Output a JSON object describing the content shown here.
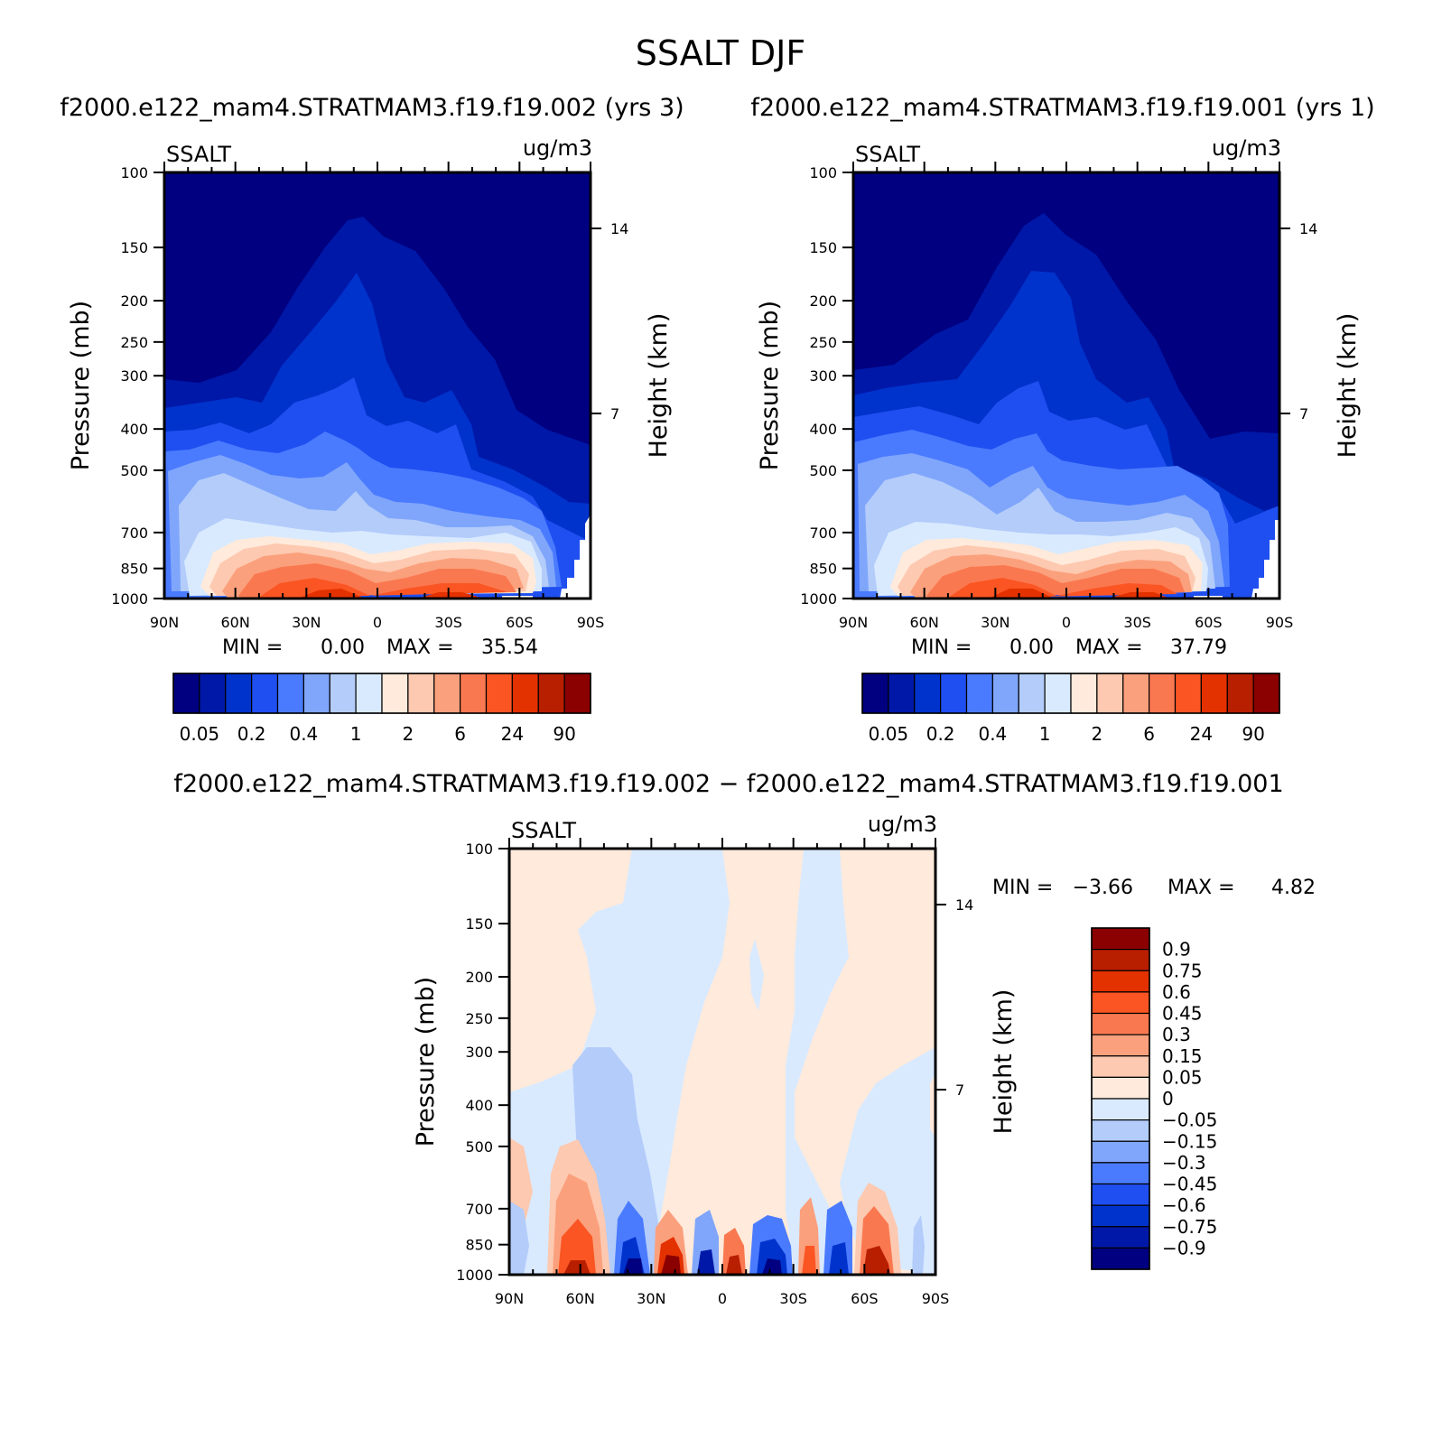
{
  "figure": {
    "title": "SSALT DJF",
    "left_title": "f2000.e122_mam4.STRATMAM3.f19.f19.002 (yrs 3)",
    "right_title": "f2000.e122_mam4.STRATMAM3.f19.f19.001 (yrs 1)",
    "diff_title": "f2000.e122_mam4.STRATMAM3.f19.f19.002 − f2000.e122_mam4.STRATMAM3.f19.f19.001"
  },
  "chart_data": [
    {
      "id": "panel-left",
      "type": "heatmap",
      "variable": "SSALT",
      "units": "ug/m3",
      "ylabel": "Pressure (mb)",
      "y2label": "Height (km)",
      "x_ticks": [
        "90N",
        "60N",
        "30N",
        "0",
        "30S",
        "60S",
        "90S"
      ],
      "y_ticks": [
        100,
        150,
        200,
        250,
        300,
        400,
        500,
        700,
        850,
        1000
      ],
      "y2_ticks": [
        14,
        7
      ],
      "ylim": [
        1000,
        100
      ],
      "min_label": "MIN =",
      "min_value": "0.00",
      "max_label": "MAX =",
      "max_value": "35.54",
      "contour_levels": [
        0.05,
        0.1,
        0.2,
        0.3,
        0.4,
        0.5,
        1,
        1.5,
        2,
        4,
        6,
        12,
        24,
        48,
        90
      ],
      "colorbar_labels": [
        "0.05",
        "0.2",
        "0.4",
        "1",
        "2",
        "6",
        "24",
        "90"
      ],
      "colors": [
        "#000080",
        "#0018a8",
        "#0033cc",
        "#1f4ff0",
        "#4a7bff",
        "#80a6fb",
        "#b3ccfa",
        "#d9eaff",
        "#ffeadb",
        "#fdc9b0",
        "#fba07c",
        "#fa7850",
        "#fa5523",
        "#e33100",
        "#b81e00",
        "#8b0000"
      ]
    },
    {
      "id": "panel-right",
      "type": "heatmap",
      "variable": "SSALT",
      "units": "ug/m3",
      "ylabel": "Pressure (mb)",
      "y2label": "Height (km)",
      "x_ticks": [
        "90N",
        "60N",
        "30N",
        "0",
        "30S",
        "60S",
        "90S"
      ],
      "y_ticks": [
        100,
        150,
        200,
        250,
        300,
        400,
        500,
        700,
        850,
        1000
      ],
      "y2_ticks": [
        14,
        7
      ],
      "ylim": [
        1000,
        100
      ],
      "min_label": "MIN =",
      "min_value": "0.00",
      "max_label": "MAX =",
      "max_value": "37.79",
      "contour_levels": [
        0.05,
        0.1,
        0.2,
        0.3,
        0.4,
        0.5,
        1,
        1.5,
        2,
        4,
        6,
        12,
        24,
        48,
        90
      ],
      "colorbar_labels": [
        "0.05",
        "0.2",
        "0.4",
        "1",
        "2",
        "6",
        "24",
        "90"
      ],
      "colors": [
        "#000080",
        "#0018a8",
        "#0033cc",
        "#1f4ff0",
        "#4a7bff",
        "#80a6fb",
        "#b3ccfa",
        "#d9eaff",
        "#ffeadb",
        "#fdc9b0",
        "#fba07c",
        "#fa7850",
        "#fa5523",
        "#e33100",
        "#b81e00",
        "#8b0000"
      ]
    },
    {
      "id": "panel-diff",
      "type": "heatmap",
      "variable": "SSALT",
      "units": "ug/m3",
      "ylabel": "Pressure (mb)",
      "y2label": "Height (km)",
      "x_ticks": [
        "90N",
        "60N",
        "30N",
        "0",
        "30S",
        "60S",
        "90S"
      ],
      "y_ticks": [
        100,
        150,
        200,
        250,
        300,
        400,
        500,
        700,
        850,
        1000
      ],
      "y2_ticks": [
        14,
        7
      ],
      "ylim": [
        1000,
        100
      ],
      "min_label": "MIN =",
      "min_value": "−3.66",
      "max_label": "MAX =",
      "max_value": "4.82",
      "colorbar_labels": [
        "0.9",
        "0.75",
        "0.6",
        "0.45",
        "0.3",
        "0.15",
        "0.05",
        "0",
        "−0.05",
        "−0.15",
        "−0.3",
        "−0.45",
        "−0.6",
        "−0.75",
        "−0.9"
      ],
      "colors": [
        "#8b0000",
        "#b81e00",
        "#e33100",
        "#fa5523",
        "#fa7850",
        "#fba07c",
        "#fdc9b0",
        "#ffeadb",
        "#d9eaff",
        "#b3ccfa",
        "#80a6fb",
        "#4a7bff",
        "#1f4ff0",
        "#0033cc",
        "#0018a8",
        "#000080"
      ]
    }
  ]
}
